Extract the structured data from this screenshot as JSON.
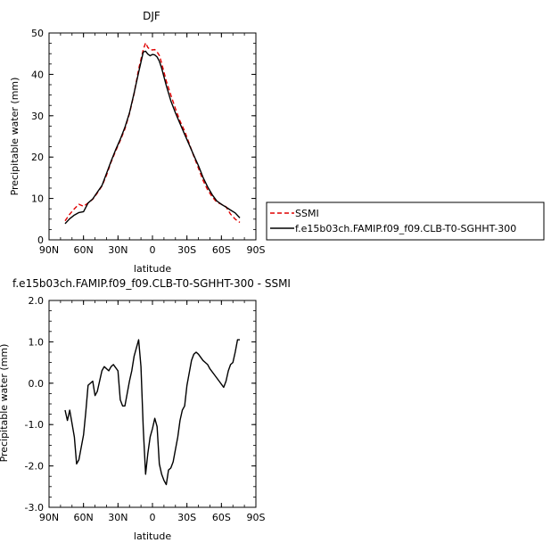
{
  "chart_data": [
    {
      "type": "line",
      "title": "DJF",
      "xlabel": "latitude",
      "ylabel": "Precipitable water (mm)",
      "x_tick_labels": [
        "90N",
        "60N",
        "30N",
        "0",
        "30S",
        "60S",
        "90S"
      ],
      "x_ticks": [
        90,
        60,
        30,
        0,
        -30,
        -60,
        -90
      ],
      "xlim": [
        90,
        -90
      ],
      "y_ticks": [
        0,
        10,
        20,
        30,
        40,
        50
      ],
      "y_tick_labels": [
        "0",
        "10",
        "20",
        "30",
        "40",
        "50"
      ],
      "ylim": [
        0,
        50
      ],
      "legend_placement": "right",
      "series": [
        {
          "name": "SSMI",
          "color": "#e00000",
          "dash": true,
          "x": [
            76,
            72,
            68,
            64,
            60,
            56,
            52,
            48,
            44,
            40,
            36,
            32,
            28,
            24,
            20,
            16,
            12,
            8,
            6,
            4,
            2,
            0,
            -2,
            -4,
            -6,
            -8,
            -12,
            -16,
            -20,
            -24,
            -28,
            -32,
            -36,
            -40,
            -44,
            -48,
            -52,
            -56,
            -60,
            -64,
            -68,
            -72,
            -76
          ],
          "values": [
            4.6,
            6.2,
            7.5,
            8.6,
            8.1,
            8.9,
            9.8,
            11.3,
            13.0,
            15.6,
            18.8,
            21.5,
            24.0,
            26.8,
            30.5,
            35.3,
            41.3,
            46.0,
            47.6,
            46.5,
            46.0,
            45.9,
            46.0,
            45.4,
            44.6,
            42.7,
            38.4,
            35.0,
            31.7,
            28.7,
            26.3,
            23.3,
            20.2,
            17.3,
            14.4,
            12.1,
            10.4,
            9.1,
            8.6,
            8.0,
            6.2,
            5.0,
            4.2
          ]
        },
        {
          "name": "f.e15b03ch.FAMIP.f09_f09.CLB-T0-SGHHT-300",
          "color": "#000000",
          "dash": false,
          "x": [
            76,
            72,
            68,
            64,
            60,
            56,
            52,
            48,
            44,
            40,
            36,
            32,
            28,
            24,
            20,
            16,
            12,
            8,
            6,
            4,
            2,
            0,
            -2,
            -4,
            -6,
            -8,
            -12,
            -16,
            -20,
            -24,
            -28,
            -32,
            -36,
            -40,
            -44,
            -48,
            -52,
            -56,
            -60,
            -64,
            -68,
            -72,
            -76
          ],
          "values": [
            3.9,
            5.1,
            6.0,
            6.6,
            6.8,
            8.9,
            9.9,
            11.5,
            13.1,
            16.0,
            19.0,
            21.8,
            24.3,
            27.2,
            30.7,
            35.5,
            40.5,
            45.4,
            45.6,
            44.9,
            44.5,
            44.8,
            44.7,
            44.2,
            43.2,
            41.5,
            37.3,
            33.6,
            30.7,
            28.1,
            25.5,
            23.0,
            20.4,
            17.9,
            15.1,
            12.8,
            10.9,
            9.4,
            8.6,
            7.9,
            7.2,
            6.5,
            5.3
          ]
        }
      ]
    },
    {
      "type": "line",
      "title": "f.e15b03ch.FAMIP.f09_f09.CLB-T0-SGHHT-300 - SSMI",
      "xlabel": "latitude",
      "ylabel": "Precipitable water (mm)",
      "x_tick_labels": [
        "90N",
        "60N",
        "30N",
        "0",
        "30S",
        "60S",
        "90S"
      ],
      "x_ticks": [
        90,
        60,
        30,
        0,
        -30,
        -60,
        -90
      ],
      "xlim": [
        90,
        -90
      ],
      "y_ticks": [
        -3,
        -2,
        -1,
        0,
        1,
        2
      ],
      "y_tick_labels": [
        "-3.0",
        "-2.0",
        "-1.0",
        "0.0",
        "1.0",
        "2.0"
      ],
      "ylim": [
        -3,
        2
      ],
      "series": [
        {
          "color": "#000000",
          "x": [
            76,
            74,
            72,
            68,
            66,
            64,
            60,
            58,
            56,
            52,
            50,
            48,
            44,
            42,
            38,
            36,
            34,
            30,
            28,
            26,
            24,
            20,
            18,
            16,
            12,
            10,
            8,
            6,
            4,
            2,
            0,
            -2,
            -4,
            -6,
            -8,
            -10,
            -12,
            -14,
            -16,
            -18,
            -20,
            -22,
            -24,
            -26,
            -28,
            -30,
            -34,
            -36,
            -38,
            -40,
            -44,
            -46,
            -48,
            -50,
            -54,
            -58,
            -62,
            -64,
            -66,
            -68,
            -70,
            -72,
            -74,
            -76
          ],
          "values": [
            -0.65,
            -0.9,
            -0.65,
            -1.3,
            -1.95,
            -1.85,
            -1.25,
            -0.7,
            -0.05,
            0.05,
            -0.3,
            -0.2,
            0.3,
            0.4,
            0.3,
            0.4,
            0.45,
            0.3,
            -0.4,
            -0.55,
            -0.55,
            0.05,
            0.3,
            0.65,
            1.05,
            0.4,
            -1.1,
            -2.2,
            -1.7,
            -1.3,
            -1.1,
            -0.85,
            -1.05,
            -1.95,
            -2.2,
            -2.35,
            -2.45,
            -2.1,
            -2.05,
            -1.9,
            -1.6,
            -1.3,
            -0.9,
            -0.65,
            -0.55,
            -0.05,
            0.55,
            0.7,
            0.75,
            0.7,
            0.55,
            0.5,
            0.45,
            0.35,
            0.2,
            0.05,
            -0.1,
            0.05,
            0.3,
            0.45,
            0.5,
            0.75,
            1.05,
            1.05
          ]
        }
      ]
    }
  ]
}
